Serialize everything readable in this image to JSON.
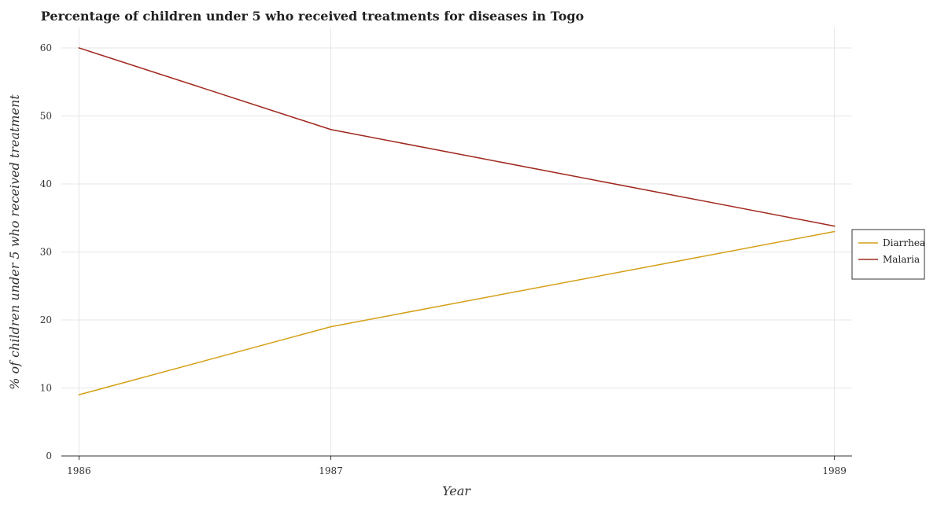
{
  "chart_data": {
    "type": "line",
    "title": "Percentage of children under 5 who received treatments for diseases in Togo",
    "xlabel": "Year",
    "ylabel": "% of children under 5 who received treatment",
    "categories": [
      "1986",
      "1987",
      "1989"
    ],
    "x": [
      1986,
      1987,
      1989
    ],
    "series": [
      {
        "name": "Diarrhea",
        "values": [
          9,
          19,
          33
        ],
        "color": "#d4a017"
      },
      {
        "name": "Malaria",
        "values": [
          60,
          48,
          33.8
        ],
        "color": "#a0281e"
      }
    ],
    "yticks": [
      0,
      10,
      20,
      30,
      40,
      50,
      60
    ],
    "ylim": [
      0,
      63
    ],
    "grid": true,
    "legend": "right"
  }
}
